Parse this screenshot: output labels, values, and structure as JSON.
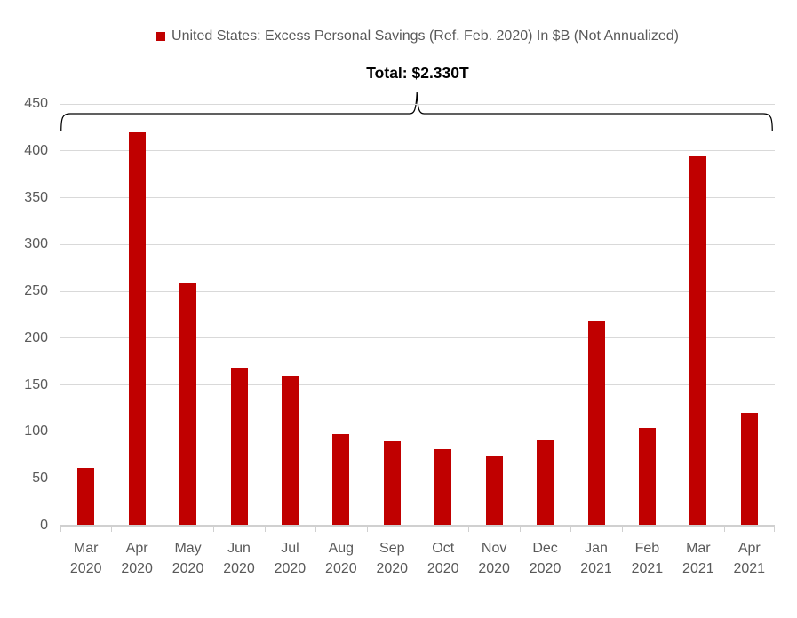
{
  "chart_data": {
    "type": "bar",
    "title": "United States: Excess Personal Savings (Ref. Feb. 2020) In $B (Not Annualized)",
    "annotation": "Total: $2.330T",
    "categories": [
      "Mar 2020",
      "Apr 2020",
      "May 2020",
      "Jun 2020",
      "Jul 2020",
      "Aug 2020",
      "Sep 2020",
      "Oct 2020",
      "Nov 2020",
      "Dec 2020",
      "Jan 2021",
      "Feb 2021",
      "Mar 2021",
      "Apr 2021"
    ],
    "values": [
      61,
      419,
      258,
      168,
      159,
      97,
      89,
      81,
      73,
      90,
      217,
      103,
      393,
      119
    ],
    "unit": "$B",
    "total_value": "2330",
    "xlabel": "",
    "ylabel": "",
    "ylim": [
      0,
      450
    ],
    "yticks": [
      0,
      50,
      100,
      150,
      200,
      250,
      300,
      350,
      400,
      450
    ],
    "grid": true,
    "legend_position": "top",
    "bar_color": "#C00000",
    "gridline_color": "#D9D9D9",
    "axis_line_color": "#D0D0D0",
    "label_color": "#595959",
    "annotation_color": "#000000",
    "brace_color": "#000000"
  }
}
